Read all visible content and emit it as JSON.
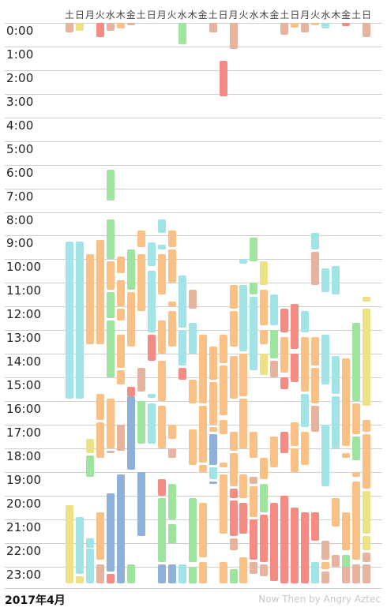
{
  "weekday_labels": [
    "土",
    "日",
    "月",
    "火",
    "水",
    "木",
    "金",
    "土",
    "日",
    "月",
    "火",
    "水",
    "木",
    "金",
    "土",
    "日",
    "月",
    "火",
    "水",
    "木",
    "金",
    "土",
    "日",
    "月",
    "火",
    "水",
    "木",
    "金",
    "土",
    "日"
  ],
  "hour_labels": [
    "0:00",
    "1:00",
    "2:00",
    "3:00",
    "4:00",
    "5:00",
    "6:00",
    "7:00",
    "8:00",
    "9:00",
    "10:00",
    "11:00",
    "12:00",
    "13:00",
    "14:00",
    "15:00",
    "16:00",
    "17:00",
    "18:00",
    "19:00",
    "20:00",
    "21:00",
    "22:00",
    "23:00"
  ],
  "footer": {
    "month_label": "2017年4月",
    "credit": "Now Then by Angry Aztec"
  },
  "colors": {
    "cyan": "#a2e4e6",
    "orange": "#f9c186",
    "green": "#9ee39e",
    "blue": "#8fb0d8",
    "red": "#f48c84",
    "yellow": "#ede186",
    "tan": "#e6b39f"
  },
  "activity_blocks": [
    {
      "day": 1,
      "start": 0.0,
      "end": 0.4,
      "color": "tan"
    },
    {
      "day": 1,
      "start": 9.25,
      "end": 15.9,
      "color": "cyan"
    },
    {
      "day": 1,
      "start": 20.4,
      "end": 23.7,
      "color": "yellow"
    },
    {
      "day": 2,
      "start": 0.0,
      "end": 0.35,
      "color": "yellow"
    },
    {
      "day": 2,
      "start": 9.25,
      "end": 15.9,
      "color": "cyan"
    },
    {
      "day": 2,
      "start": 20.9,
      "end": 23.3,
      "color": "cyan"
    },
    {
      "day": 2,
      "start": 23.4,
      "end": 23.7,
      "color": "yellow"
    },
    {
      "day": 3,
      "start": 9.8,
      "end": 13.6,
      "color": "orange"
    },
    {
      "day": 3,
      "start": 17.6,
      "end": 18.2,
      "color": "yellow"
    },
    {
      "day": 3,
      "start": 18.3,
      "end": 19.2,
      "color": "green"
    },
    {
      "day": 3,
      "start": 21.8,
      "end": 22.2,
      "color": "cyan"
    },
    {
      "day": 3,
      "start": 22.25,
      "end": 23.7,
      "color": "cyan"
    },
    {
      "day": 4,
      "start": 0.0,
      "end": 0.6,
      "color": "red"
    },
    {
      "day": 4,
      "start": 9.2,
      "end": 13.6,
      "color": "orange"
    },
    {
      "day": 4,
      "start": 11.3,
      "end": 13.4,
      "color": "orange"
    },
    {
      "day": 4,
      "start": 15.7,
      "end": 16.8,
      "color": "orange"
    },
    {
      "day": 4,
      "start": 16.9,
      "end": 18.4,
      "color": "orange"
    },
    {
      "day": 4,
      "start": 20.7,
      "end": 22.7,
      "color": "orange"
    },
    {
      "day": 4,
      "start": 22.9,
      "end": 23.7,
      "color": "tan"
    },
    {
      "day": 5,
      "start": 0.0,
      "end": 0.35,
      "color": "tan"
    },
    {
      "day": 5,
      "start": 6.2,
      "end": 7.5,
      "color": "green"
    },
    {
      "day": 5,
      "start": 8.3,
      "end": 10.0,
      "color": "green"
    },
    {
      "day": 5,
      "start": 10.1,
      "end": 11.3,
      "color": "orange"
    },
    {
      "day": 5,
      "start": 11.4,
      "end": 12.5,
      "color": "green"
    },
    {
      "day": 5,
      "start": 12.6,
      "end": 15.0,
      "color": "green"
    },
    {
      "day": 5,
      "start": 15.9,
      "end": 18.0,
      "color": "orange"
    },
    {
      "day": 5,
      "start": 18.1,
      "end": 18.2,
      "color": "tan"
    },
    {
      "day": 5,
      "start": 19.9,
      "end": 23.2,
      "color": "blue"
    },
    {
      "day": 5,
      "start": 23.3,
      "end": 23.7,
      "color": "red"
    },
    {
      "day": 6,
      "start": 0.0,
      "end": 0.25,
      "color": "orange"
    },
    {
      "day": 6,
      "start": 9.9,
      "end": 10.6,
      "color": "orange"
    },
    {
      "day": 6,
      "start": 10.9,
      "end": 12.0,
      "color": "orange"
    },
    {
      "day": 6,
      "start": 12.1,
      "end": 12.6,
      "color": "orange"
    },
    {
      "day": 6,
      "start": 13.2,
      "end": 14.6,
      "color": "orange"
    },
    {
      "day": 6,
      "start": 14.7,
      "end": 15.3,
      "color": "orange"
    },
    {
      "day": 6,
      "start": 17.0,
      "end": 18.1,
      "color": "tan"
    },
    {
      "day": 6,
      "start": 19.1,
      "end": 23.7,
      "color": "blue"
    },
    {
      "day": 7,
      "start": 0.0,
      "end": 0.1,
      "color": "tan"
    },
    {
      "day": 7,
      "start": 9.6,
      "end": 11.3,
      "color": "green"
    },
    {
      "day": 7,
      "start": 11.4,
      "end": 13.7,
      "color": "orange"
    },
    {
      "day": 7,
      "start": 15.4,
      "end": 15.8,
      "color": "red"
    },
    {
      "day": 7,
      "start": 15.8,
      "end": 18.9,
      "color": "blue"
    },
    {
      "day": 7,
      "start": 22.9,
      "end": 23.7,
      "color": "green"
    },
    {
      "day": 8,
      "start": 8.8,
      "end": 9.5,
      "color": "orange"
    },
    {
      "day": 8,
      "start": 9.8,
      "end": 12.2,
      "color": "orange"
    },
    {
      "day": 8,
      "start": 14.6,
      "end": 15.6,
      "color": "tan"
    },
    {
      "day": 8,
      "start": 16.0,
      "end": 17.8,
      "color": "green"
    },
    {
      "day": 8,
      "start": 19.0,
      "end": 21.7,
      "color": "blue"
    },
    {
      "day": 9,
      "start": 9.3,
      "end": 10.3,
      "color": "cyan"
    },
    {
      "day": 9,
      "start": 10.5,
      "end": 13.1,
      "color": "cyan"
    },
    {
      "day": 9,
      "start": 13.2,
      "end": 14.3,
      "color": "red"
    },
    {
      "day": 9,
      "start": 15.7,
      "end": 15.85,
      "color": "cyan"
    },
    {
      "day": 9,
      "start": 16.1,
      "end": 17.8,
      "color": "cyan"
    },
    {
      "day": 10,
      "start": 8.3,
      "end": 8.9,
      "color": "cyan"
    },
    {
      "day": 10,
      "start": 9.4,
      "end": 9.6,
      "color": "cyan"
    },
    {
      "day": 10,
      "start": 9.8,
      "end": 11.5,
      "color": "orange"
    },
    {
      "day": 10,
      "start": 12.6,
      "end": 14.0,
      "color": "orange"
    },
    {
      "day": 10,
      "start": 14.3,
      "end": 16.0,
      "color": "orange"
    },
    {
      "day": 10,
      "start": 16.2,
      "end": 18.0,
      "color": "orange"
    },
    {
      "day": 10,
      "start": 19.3,
      "end": 20.0,
      "color": "red"
    },
    {
      "day": 10,
      "start": 20.1,
      "end": 22.8,
      "color": "green"
    },
    {
      "day": 10,
      "start": 22.9,
      "end": 23.7,
      "color": "blue"
    },
    {
      "day": 11,
      "start": 8.8,
      "end": 9.5,
      "color": "orange"
    },
    {
      "day": 11,
      "start": 9.6,
      "end": 11.0,
      "color": "orange"
    },
    {
      "day": 11,
      "start": 11.8,
      "end": 12.0,
      "color": "orange"
    },
    {
      "day": 11,
      "start": 12.2,
      "end": 13.7,
      "color": "orange"
    },
    {
      "day": 11,
      "start": 17.0,
      "end": 17.6,
      "color": "orange"
    },
    {
      "day": 11,
      "start": 18.0,
      "end": 18.4,
      "color": "tan"
    },
    {
      "day": 11,
      "start": 19.5,
      "end": 21.0,
      "color": "green"
    },
    {
      "day": 11,
      "start": 21.2,
      "end": 22.0,
      "color": "green"
    },
    {
      "day": 11,
      "start": 22.9,
      "end": 23.7,
      "color": "blue"
    },
    {
      "day": 12,
      "start": 0.0,
      "end": 0.9,
      "color": "green"
    },
    {
      "day": 12,
      "start": 10.7,
      "end": 12.9,
      "color": "cyan"
    },
    {
      "day": 12,
      "start": 13.0,
      "end": 14.5,
      "color": "cyan"
    },
    {
      "day": 12,
      "start": 14.6,
      "end": 15.1,
      "color": "red"
    },
    {
      "day": 12,
      "start": 22.9,
      "end": 23.7,
      "color": "cyan"
    },
    {
      "day": 13,
      "start": 11.3,
      "end": 12.1,
      "color": "tan"
    },
    {
      "day": 13,
      "start": 12.7,
      "end": 14.0,
      "color": "cyan"
    },
    {
      "day": 13,
      "start": 15.1,
      "end": 16.1,
      "color": "orange"
    },
    {
      "day": 13,
      "start": 17.2,
      "end": 18.7,
      "color": "orange"
    },
    {
      "day": 13,
      "start": 20.1,
      "end": 22.8,
      "color": "green"
    },
    {
      "day": 13,
      "start": 23.0,
      "end": 23.7,
      "color": "green"
    },
    {
      "day": 14,
      "start": 13.2,
      "end": 16.1,
      "color": "orange"
    },
    {
      "day": 14,
      "start": 16.2,
      "end": 18.6,
      "color": "orange"
    },
    {
      "day": 14,
      "start": 18.7,
      "end": 19.0,
      "color": "orange"
    },
    {
      "day": 14,
      "start": 20.3,
      "end": 22.6,
      "color": "orange"
    },
    {
      "day": 14,
      "start": 22.8,
      "end": 23.7,
      "color": "orange"
    },
    {
      "day": 15,
      "start": 0.0,
      "end": 0.4,
      "color": "tan"
    },
    {
      "day": 15,
      "start": 13.7,
      "end": 15.1,
      "color": "orange"
    },
    {
      "day": 15,
      "start": 15.2,
      "end": 17.0,
      "color": "orange"
    },
    {
      "day": 15,
      "start": 17.1,
      "end": 17.3,
      "color": "orange"
    },
    {
      "day": 15,
      "start": 17.4,
      "end": 18.7,
      "color": "blue"
    },
    {
      "day": 15,
      "start": 18.8,
      "end": 19.3,
      "color": "cyan"
    },
    {
      "day": 15,
      "start": 19.4,
      "end": 19.5,
      "color": "blue"
    },
    {
      "day": 16,
      "start": 1.6,
      "end": 3.1,
      "color": "red"
    },
    {
      "day": 16,
      "start": 13.2,
      "end": 14.4,
      "color": "orange"
    },
    {
      "day": 16,
      "start": 14.5,
      "end": 16.6,
      "color": "orange"
    },
    {
      "day": 16,
      "start": 16.8,
      "end": 17.4,
      "color": "orange"
    },
    {
      "day": 16,
      "start": 18.6,
      "end": 18.8,
      "color": "orange"
    },
    {
      "day": 16,
      "start": 19.1,
      "end": 21.6,
      "color": "orange"
    },
    {
      "day": 16,
      "start": 22.8,
      "end": 23.7,
      "color": "orange"
    },
    {
      "day": 17,
      "start": 0.0,
      "end": 1.1,
      "color": "tan"
    },
    {
      "day": 17,
      "start": 11.1,
      "end": 12.1,
      "color": "orange"
    },
    {
      "day": 17,
      "start": 12.2,
      "end": 13.7,
      "color": "orange"
    },
    {
      "day": 17,
      "start": 14.1,
      "end": 15.9,
      "color": "orange"
    },
    {
      "day": 17,
      "start": 17.3,
      "end": 18.1,
      "color": "orange"
    },
    {
      "day": 17,
      "start": 18.2,
      "end": 19.6,
      "color": "orange"
    },
    {
      "day": 17,
      "start": 19.7,
      "end": 20.1,
      "color": "red"
    },
    {
      "day": 17,
      "start": 20.2,
      "end": 21.7,
      "color": "red"
    },
    {
      "day": 17,
      "start": 21.8,
      "end": 22.3,
      "color": "tan"
    },
    {
      "day": 17,
      "start": 23.1,
      "end": 23.7,
      "color": "green"
    },
    {
      "day": 18,
      "start": 10.0,
      "end": 10.2,
      "color": "cyan"
    },
    {
      "day": 18,
      "start": 11.1,
      "end": 13.9,
      "color": "cyan"
    },
    {
      "day": 18,
      "start": 14.0,
      "end": 15.8,
      "color": "orange"
    },
    {
      "day": 18,
      "start": 15.9,
      "end": 18.0,
      "color": "orange"
    },
    {
      "day": 18,
      "start": 19.1,
      "end": 20.1,
      "color": "orange"
    },
    {
      "day": 18,
      "start": 20.3,
      "end": 21.6,
      "color": "red"
    },
    {
      "day": 18,
      "start": 22.6,
      "end": 23.7,
      "color": "orange"
    },
    {
      "day": 19,
      "start": 9.1,
      "end": 10.1,
      "color": "green"
    },
    {
      "day": 19,
      "start": 11.0,
      "end": 11.5,
      "color": "green"
    },
    {
      "day": 19,
      "start": 11.6,
      "end": 14.7,
      "color": "cyan"
    },
    {
      "day": 19,
      "start": 17.3,
      "end": 18.4,
      "color": "orange"
    },
    {
      "day": 19,
      "start": 19.2,
      "end": 19.5,
      "color": "tan"
    },
    {
      "day": 19,
      "start": 19.6,
      "end": 20.9,
      "color": "orange"
    },
    {
      "day": 19,
      "start": 21.0,
      "end": 22.7,
      "color": "red"
    },
    {
      "day": 19,
      "start": 22.8,
      "end": 23.3,
      "color": "tan"
    },
    {
      "day": 20,
      "start": 10.1,
      "end": 11.1,
      "color": "yellow"
    },
    {
      "day": 20,
      "start": 11.3,
      "end": 12.8,
      "color": "orange"
    },
    {
      "day": 20,
      "start": 13.0,
      "end": 13.6,
      "color": "orange"
    },
    {
      "day": 20,
      "start": 14.0,
      "end": 14.9,
      "color": "yellow"
    },
    {
      "day": 20,
      "start": 18.4,
      "end": 19.3,
      "color": "orange"
    },
    {
      "day": 20,
      "start": 19.5,
      "end": 20.7,
      "color": "green"
    },
    {
      "day": 20,
      "start": 20.8,
      "end": 22.8,
      "color": "red"
    },
    {
      "day": 20,
      "start": 22.9,
      "end": 23.4,
      "color": "tan"
    },
    {
      "day": 21,
      "start": 11.5,
      "end": 12.8,
      "color": "cyan"
    },
    {
      "day": 21,
      "start": 13.0,
      "end": 14.2,
      "color": "green"
    },
    {
      "day": 21,
      "start": 14.3,
      "end": 15.0,
      "color": "tan"
    },
    {
      "day": 21,
      "start": 17.5,
      "end": 18.8,
      "color": "orange"
    },
    {
      "day": 21,
      "start": 20.3,
      "end": 23.6,
      "color": "red"
    },
    {
      "day": 22,
      "start": 0.0,
      "end": 0.5,
      "color": "tan"
    },
    {
      "day": 22,
      "start": 12.1,
      "end": 13.1,
      "color": "red"
    },
    {
      "day": 22,
      "start": 13.3,
      "end": 14.8,
      "color": "orange"
    },
    {
      "day": 22,
      "start": 15.0,
      "end": 15.5,
      "color": "red"
    },
    {
      "day": 22,
      "start": 17.3,
      "end": 18.2,
      "color": "red"
    },
    {
      "day": 22,
      "start": 20.0,
      "end": 23.7,
      "color": "red"
    },
    {
      "day": 23,
      "start": 0.0,
      "end": 0.2,
      "color": "orange"
    },
    {
      "day": 23,
      "start": 11.9,
      "end": 13.8,
      "color": "red"
    },
    {
      "day": 23,
      "start": 14.0,
      "end": 15.2,
      "color": "red"
    },
    {
      "day": 23,
      "start": 16.9,
      "end": 17.9,
      "color": "orange"
    },
    {
      "day": 23,
      "start": 18.0,
      "end": 19.0,
      "color": "orange"
    },
    {
      "day": 23,
      "start": 20.5,
      "end": 23.7,
      "color": "red"
    },
    {
      "day": 24,
      "start": 0.0,
      "end": 0.4,
      "color": "tan"
    },
    {
      "day": 24,
      "start": 12.2,
      "end": 13.1,
      "color": "cyan"
    },
    {
      "day": 24,
      "start": 13.3,
      "end": 15.6,
      "color": "orange"
    },
    {
      "day": 24,
      "start": 15.7,
      "end": 17.1,
      "color": "cyan"
    },
    {
      "day": 24,
      "start": 17.3,
      "end": 18.7,
      "color": "orange"
    },
    {
      "day": 24,
      "start": 20.7,
      "end": 23.7,
      "color": "red"
    },
    {
      "day": 25,
      "start": 0.0,
      "end": 0.1,
      "color": "orange"
    },
    {
      "day": 25,
      "start": 8.9,
      "end": 9.6,
      "color": "cyan"
    },
    {
      "day": 25,
      "start": 9.7,
      "end": 11.1,
      "color": "tan"
    },
    {
      "day": 25,
      "start": 13.3,
      "end": 14.5,
      "color": "orange"
    },
    {
      "day": 25,
      "start": 14.6,
      "end": 16.1,
      "color": "orange"
    },
    {
      "day": 25,
      "start": 16.2,
      "end": 17.3,
      "color": "tan"
    },
    {
      "day": 25,
      "start": 20.7,
      "end": 21.9,
      "color": "red"
    },
    {
      "day": 25,
      "start": 22.8,
      "end": 23.7,
      "color": "cyan"
    },
    {
      "day": 26,
      "start": 0.0,
      "end": 0.25,
      "color": "cyan"
    },
    {
      "day": 26,
      "start": 10.4,
      "end": 11.4,
      "color": "cyan"
    },
    {
      "day": 26,
      "start": 13.2,
      "end": 15.3,
      "color": "cyan"
    },
    {
      "day": 26,
      "start": 17.0,
      "end": 19.6,
      "color": "cyan"
    },
    {
      "day": 26,
      "start": 21.9,
      "end": 22.7,
      "color": "tan"
    },
    {
      "day": 26,
      "start": 22.8,
      "end": 23.1,
      "color": "orange"
    },
    {
      "day": 26,
      "start": 23.2,
      "end": 23.7,
      "color": "tan"
    },
    {
      "day": 27,
      "start": 10.3,
      "end": 11.5,
      "color": "cyan"
    },
    {
      "day": 27,
      "start": 14.1,
      "end": 15.7,
      "color": "cyan"
    },
    {
      "day": 27,
      "start": 15.8,
      "end": 18.0,
      "color": "cyan"
    },
    {
      "day": 27,
      "start": 20.1,
      "end": 21.3,
      "color": "orange"
    },
    {
      "day": 27,
      "start": 22.5,
      "end": 23.0,
      "color": "tan"
    },
    {
      "day": 28,
      "start": 0.0,
      "end": 0.15,
      "color": "red"
    },
    {
      "day": 28,
      "start": 14.2,
      "end": 17.9,
      "color": "orange"
    },
    {
      "day": 28,
      "start": 18.2,
      "end": 18.4,
      "color": "orange"
    },
    {
      "day": 28,
      "start": 20.7,
      "end": 22.3,
      "color": "orange"
    },
    {
      "day": 28,
      "start": 22.5,
      "end": 23.1,
      "color": "green"
    },
    {
      "day": 28,
      "start": 23.0,
      "end": 23.7,
      "color": "tan"
    },
    {
      "day": 29,
      "start": 12.7,
      "end": 16.0,
      "color": "green"
    },
    {
      "day": 29,
      "start": 16.1,
      "end": 17.4,
      "color": "orange"
    },
    {
      "day": 29,
      "start": 17.5,
      "end": 18.5,
      "color": "green"
    },
    {
      "day": 29,
      "start": 19.0,
      "end": 19.2,
      "color": "orange"
    },
    {
      "day": 29,
      "start": 19.4,
      "end": 22.7,
      "color": "orange"
    },
    {
      "day": 29,
      "start": 22.9,
      "end": 23.7,
      "color": "tan"
    },
    {
      "day": 30,
      "start": 0.0,
      "end": 0.6,
      "color": "tan"
    },
    {
      "day": 30,
      "start": 11.6,
      "end": 11.8,
      "color": "yellow"
    },
    {
      "day": 30,
      "start": 12.1,
      "end": 16.2,
      "color": "yellow"
    },
    {
      "day": 30,
      "start": 16.8,
      "end": 17.3,
      "color": "orange"
    },
    {
      "day": 30,
      "start": 17.4,
      "end": 19.7,
      "color": "orange"
    },
    {
      "day": 30,
      "start": 19.8,
      "end": 21.6,
      "color": "yellow"
    },
    {
      "day": 30,
      "start": 21.7,
      "end": 22.3,
      "color": "yellow"
    },
    {
      "day": 30,
      "start": 22.4,
      "end": 22.8,
      "color": "tan"
    },
    {
      "day": 30,
      "start": 22.9,
      "end": 23.7,
      "color": "tan"
    }
  ]
}
